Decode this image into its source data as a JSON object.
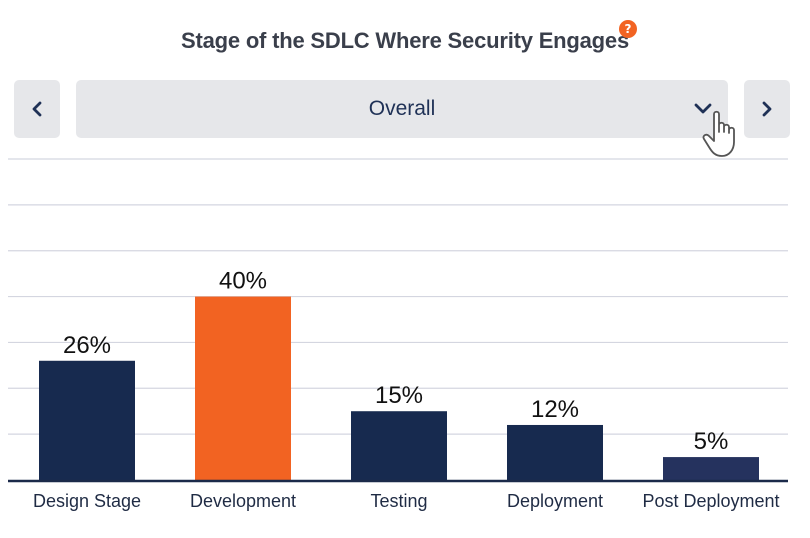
{
  "header": {
    "title": "Stage of the SDLC Where Security Engages",
    "help_icon": "question-mark-icon",
    "help_symbol": "?"
  },
  "selector": {
    "prev_icon": "chevron-left-icon",
    "next_icon": "chevron-right-icon",
    "value": "Overall",
    "dropdown_icon": "chevron-down-icon"
  },
  "colors": {
    "navy": "#172a4f",
    "orange": "#f26322",
    "post_deployment": "#25325e",
    "grid": "#d4d6e0",
    "axis": "#1b2a4a"
  },
  "chart_data": {
    "type": "bar",
    "title": "Stage of the SDLC Where Security Engages",
    "categories": [
      "Design Stage",
      "Development",
      "Testing",
      "Deployment",
      "Post Deployment"
    ],
    "values": [
      26,
      40,
      15,
      12,
      5
    ],
    "value_labels": [
      "26%",
      "40%",
      "15%",
      "12%",
      "5%"
    ],
    "highlight_index": 1,
    "ylim": [
      0,
      70
    ],
    "grid": true,
    "legend": "none",
    "xlabel": "",
    "ylabel": ""
  }
}
